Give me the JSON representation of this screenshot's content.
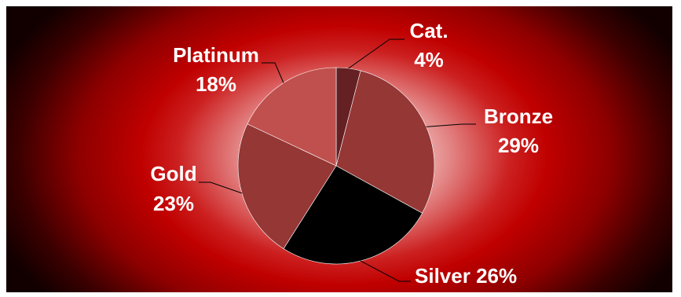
{
  "chart_data": {
    "type": "pie",
    "title": "",
    "slices": [
      {
        "label": "Cat.",
        "value": 4,
        "value_text": "4%",
        "color": "#652023"
      },
      {
        "label": "Bronze",
        "value": 29,
        "value_text": "29%",
        "color": "#953735"
      },
      {
        "label": "Silver",
        "value": 26,
        "value_text": "26%",
        "color": "#000000"
      },
      {
        "label": "Gold",
        "value": 23,
        "value_text": "23%",
        "color": "#953735"
      },
      {
        "label": "Platinum",
        "value": 18,
        "value_text": "18%",
        "color": "#c0504d"
      }
    ],
    "start_angle_deg": 0,
    "direction": "clockwise",
    "legend": "none",
    "background": "radial white-to-dark-red gradient"
  }
}
